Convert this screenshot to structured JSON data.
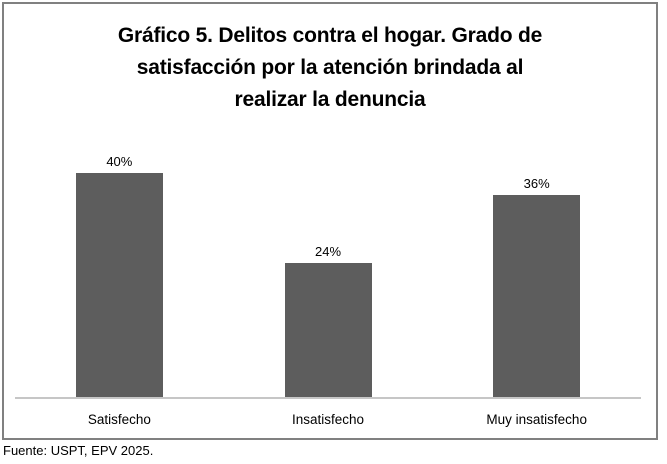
{
  "figure": {
    "title_lines": {
      "line1": "Gráfico 5. Delitos contra el hogar. Grado de",
      "line2": "satisfacción por la atención brindada al",
      "line3": "realizar la denuncia"
    },
    "source": "Fuente: USPT, EPV 2025."
  },
  "chart_data": {
    "type": "bar",
    "title": "Gráfico 5. Delitos contra el hogar. Grado de satisfacción por la atención brindada al realizar la denuncia",
    "categories": [
      "Satisfecho",
      "Insatisfecho",
      "Muy insatisfecho"
    ],
    "values": [
      40,
      24,
      36
    ],
    "value_labels": [
      "40%",
      "24%",
      "36%"
    ],
    "xlabel": "",
    "ylabel": "",
    "ylim": [
      0,
      44
    ],
    "grid": false,
    "legend": false,
    "bar_color": "#5d5d5d",
    "axis_line_color": "#c6c6c6",
    "frame_border_color": "#808080",
    "source_note": "Fuente: USPT, EPV 2025."
  }
}
